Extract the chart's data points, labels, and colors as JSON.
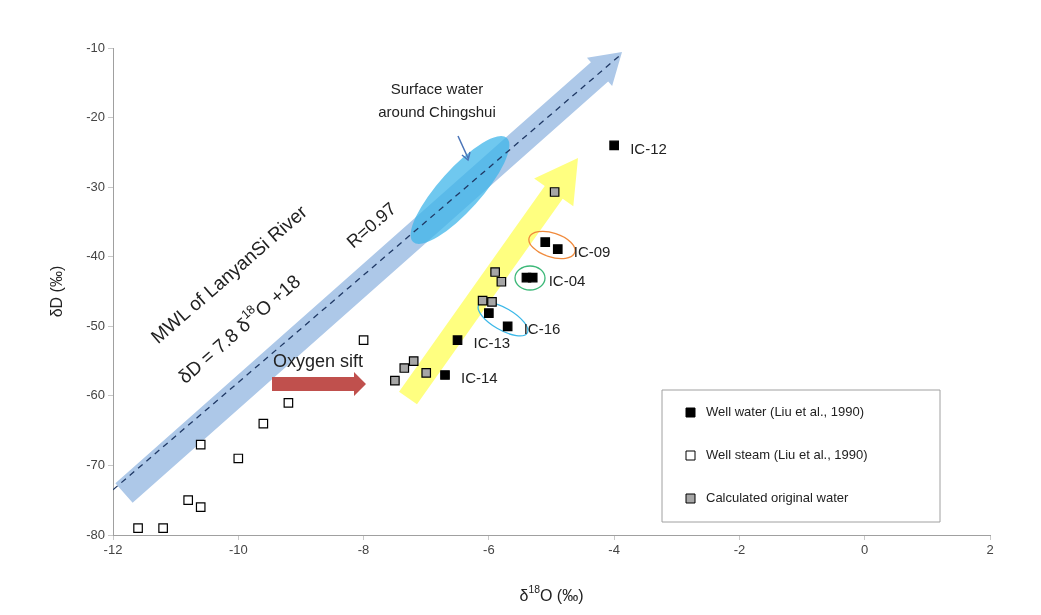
{
  "chart_data": {
    "type": "scatter",
    "xlabel": "δ$^{18}$O (‰)",
    "ylabel": "δD (‰)",
    "xlim": [
      -12,
      2
    ],
    "xticks": [
      -12,
      -10,
      -8,
      -6,
      -4,
      -2,
      0,
      2
    ],
    "ylim": [
      -80,
      -10
    ],
    "yticks": [
      -80,
      -70,
      -60,
      -50,
      -40,
      -30,
      -20,
      -10
    ],
    "grid": false,
    "legend": "bottom right",
    "marker": "square",
    "series": [
      {
        "name": "Well water (Liu et al., 1990)",
        "color": "#000000",
        "x": [
          -4.0,
          -5.1,
          -4.9,
          -5.4,
          -5.3,
          -6.0,
          -5.7,
          -6.5,
          -6.7
        ],
        "values": [
          -24,
          -37.9,
          -38.9,
          -43,
          -43,
          -48.1,
          -50,
          -52,
          -57
        ]
      },
      {
        "name": "Well steam (Liu et al., 1990)",
        "color": "#ffffff",
        "x": [
          -8.0,
          -9.2,
          -9.6,
          -10.6,
          -10.0,
          -10.8,
          -10.6,
          -11.6,
          -11.2
        ],
        "values": [
          -52,
          -61,
          -64,
          -67,
          -69,
          -75,
          -76,
          -79,
          -79
        ]
      },
      {
        "name": "Calculated original water",
        "color": "#a6a6a6",
        "x": [
          -4.95,
          -5.9,
          -5.8,
          -6.1,
          -5.95,
          -7.0,
          -7.2,
          -7.35,
          -7.5
        ],
        "values": [
          -30.7,
          -42.2,
          -43.6,
          -46.3,
          -46.5,
          -56.7,
          -55,
          -56,
          -57.8
        ]
      },
      {
        "type": "line",
        "color": "#1f3864",
        "line_style": "dashed",
        "marker": "none",
        "x": [
          -12,
          -3.9
        ],
        "values": [
          -73.5,
          -11
        ]
      }
    ],
    "annotations": [
      "Surface water around Chingshui",
      "MWL of LanyanSi River",
      "δD = 7.8 δ$^{18}$O +18",
      "R=0.97",
      "Oxygen sift",
      {
        "text": "IC-12",
        "x": -4.0,
        "y": -24
      },
      {
        "text": "IC-09",
        "x": -4.9,
        "y": -38.9
      },
      {
        "text": "IC-04",
        "x": -5.3,
        "y": -43
      },
      {
        "text": "IC-16",
        "x": -5.7,
        "y": -50
      },
      {
        "text": "IC-13",
        "x": -6.5,
        "y": -52
      },
      {
        "text": "IC-14",
        "x": -6.7,
        "y": -57
      }
    ]
  }
}
